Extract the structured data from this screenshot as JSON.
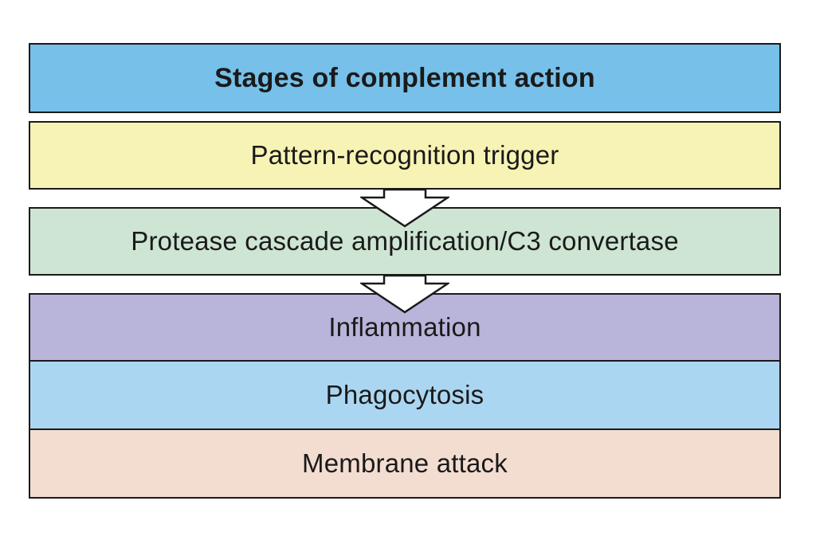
{
  "title": "Stages of complement action",
  "stages": [
    {
      "label": "Pattern-recognition trigger",
      "color": "#f7f3b4"
    },
    {
      "label": "Protease cascade amplification/C3 convertase",
      "color": "#cde5d2"
    },
    {
      "label": "Inflammation",
      "color": "#b9b4d9"
    },
    {
      "label": "Phagocytosis",
      "color": "#abd6f1"
    },
    {
      "label": "Membrane attack",
      "color": "#f3ddd1"
    }
  ],
  "title_color": "#76c0ea",
  "arrow_color": "#ffffff",
  "icons": [
    "arrow-down-icon",
    "arrow-down-icon"
  ]
}
